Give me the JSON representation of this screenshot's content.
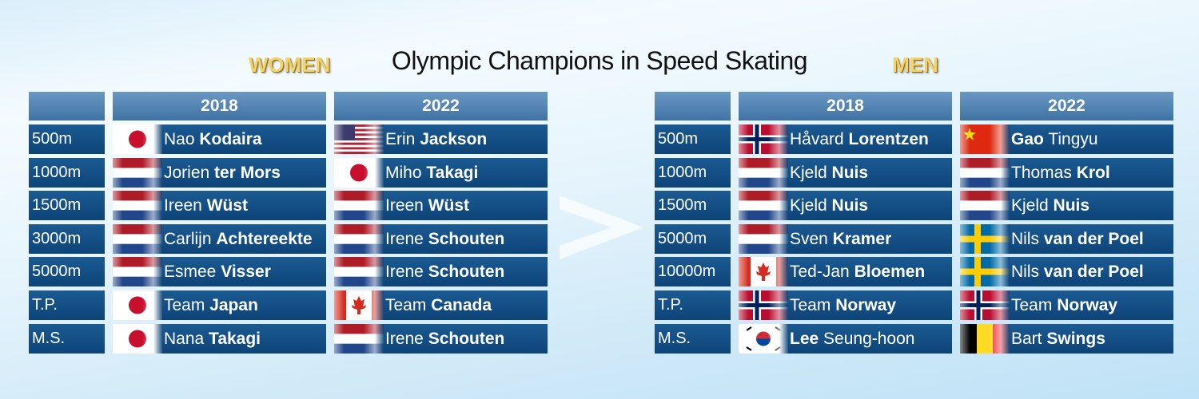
{
  "title": "Olympic Champions in Speed Skating",
  "women": {
    "label": "WOMEN",
    "header": [
      "2018",
      "2022"
    ],
    "rows": [
      {
        "event": "500m",
        "winners": [
          [
            {
              "text": "Nao",
              "bold": false
            },
            {
              "text": "Kodaira",
              "bold": true
            }
          ],
          [
            {
              "text": "Erin",
              "bold": false
            },
            {
              "text": "Jackson",
              "bold": true
            }
          ]
        ]
      },
      {
        "event": "1000m",
        "winners": [
          [
            {
              "text": "Jorien",
              "bold": false
            },
            {
              "text": "ter Mors",
              "bold": true
            }
          ],
          [
            {
              "text": "Miho",
              "bold": false
            },
            {
              "text": "Takagi",
              "bold": true
            }
          ]
        ]
      },
      {
        "event": "1500m",
        "winners": [
          [
            {
              "text": "Ireen",
              "bold": false
            },
            {
              "text": "Wüst",
              "bold": true
            }
          ],
          [
            {
              "text": "Ireen",
              "bold": false
            },
            {
              "text": "Wüst",
              "bold": true
            }
          ]
        ]
      },
      {
        "event": "3000m",
        "winners": [
          [
            {
              "text": "Carlijn",
              "bold": false
            },
            {
              "text": "Achtereekte",
              "bold": true
            }
          ],
          [
            {
              "text": "Irene",
              "bold": false
            },
            {
              "text": "Schouten",
              "bold": true
            }
          ]
        ]
      },
      {
        "event": "5000m",
        "winners": [
          [
            {
              "text": "Esmee",
              "bold": false
            },
            {
              "text": "Visser",
              "bold": true
            }
          ],
          [
            {
              "text": "Irene",
              "bold": false
            },
            {
              "text": "Schouten",
              "bold": true
            }
          ]
        ]
      },
      {
        "event": "T.P.",
        "winners": [
          [
            {
              "text": "Team",
              "bold": false
            },
            {
              "text": "Japan",
              "bold": true
            }
          ],
          [
            {
              "text": "Team",
              "bold": false
            },
            {
              "text": "Canada",
              "bold": true
            }
          ]
        ]
      },
      {
        "event": "M.S.",
        "winners": [
          [
            {
              "text": "Nana",
              "bold": false
            },
            {
              "text": "Takagi",
              "bold": true
            }
          ],
          [
            {
              "text": "Irene",
              "bold": false
            },
            {
              "text": "Schouten",
              "bold": true
            }
          ]
        ]
      }
    ]
  },
  "men": {
    "label": "MEN",
    "header": [
      "2018",
      "2022"
    ],
    "rows": [
      {
        "event": "500m",
        "winners": [
          [
            {
              "text": "Håvard",
              "bold": false
            },
            {
              "text": "Lorentzen",
              "bold": true
            }
          ],
          [
            {
              "text": "Gao",
              "bold": true
            },
            {
              "text": "Tingyu",
              "bold": false
            }
          ]
        ]
      },
      {
        "event": "1000m",
        "winners": [
          [
            {
              "text": "Kjeld",
              "bold": false
            },
            {
              "text": "Nuis",
              "bold": true
            }
          ],
          [
            {
              "text": "Thomas",
              "bold": false
            },
            {
              "text": "Krol",
              "bold": true
            }
          ]
        ]
      },
      {
        "event": "1500m",
        "winners": [
          [
            {
              "text": "Kjeld",
              "bold": false
            },
            {
              "text": "Nuis",
              "bold": true
            }
          ],
          [
            {
              "text": "Kjeld",
              "bold": false
            },
            {
              "text": "Nuis",
              "bold": true
            }
          ]
        ]
      },
      {
        "event": "5000m",
        "winners": [
          [
            {
              "text": "Sven",
              "bold": false
            },
            {
              "text": "Kramer",
              "bold": true
            }
          ],
          [
            {
              "text": "Nils",
              "bold": false
            },
            {
              "text": "van der Poel",
              "bold": true
            }
          ]
        ]
      },
      {
        "event": "10000m",
        "winners": [
          [
            {
              "text": "Ted-Jan",
              "bold": false
            },
            {
              "text": "Bloemen",
              "bold": true
            }
          ],
          [
            {
              "text": "Nils",
              "bold": false
            },
            {
              "text": "van der Poel",
              "bold": true
            }
          ]
        ]
      },
      {
        "event": "T.P.",
        "winners": [
          [
            {
              "text": "Team",
              "bold": false
            },
            {
              "text": "Norway",
              "bold": true
            }
          ],
          [
            {
              "text": "Team",
              "bold": false
            },
            {
              "text": "Norway",
              "bold": true
            }
          ]
        ]
      },
      {
        "event": "M.S.",
        "winners": [
          [
            {
              "text": "Lee",
              "bold": true
            },
            {
              "text": "Seung-hoon",
              "bold": false
            }
          ],
          [
            {
              "text": "Bart",
              "bold": false
            },
            {
              "text": "Swings",
              "bold": true
            }
          ]
        ]
      }
    ]
  }
}
